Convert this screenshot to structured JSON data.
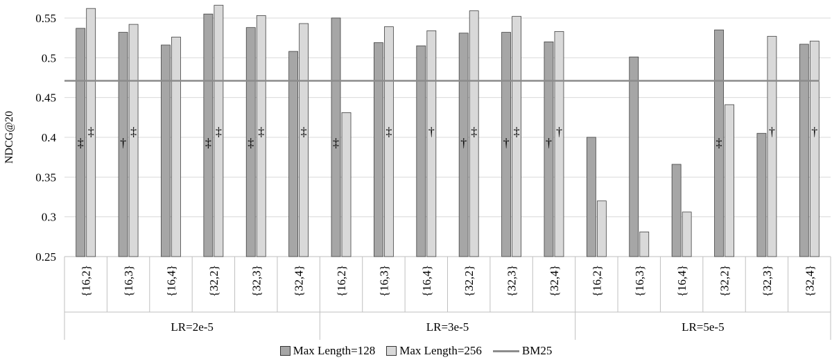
{
  "chart_data": {
    "type": "bar",
    "ylabel": "NDCG@20",
    "ylim": [
      0.25,
      0.57
    ],
    "yticks": [
      "0.25",
      "0.3",
      "0.35",
      "0.4",
      "0.45",
      "0.5",
      "0.55"
    ],
    "grid": true,
    "legend_position": "bottom",
    "groups": [
      {
        "label": "LR=2e-5",
        "categories": [
          "{16,2}",
          "{16,3}",
          "{16,4}",
          "{32,2}",
          "{32,3}",
          "{32,4}"
        ]
      },
      {
        "label": "LR=3e-5",
        "categories": [
          "{16,2}",
          "{16,3}",
          "{16,4}",
          "{32,2}",
          "{32,3}",
          "{32,4}"
        ]
      },
      {
        "label": "LR=5e-5",
        "categories": [
          "{16,2}",
          "{16,3}",
          "{16,4}",
          "{32,2}",
          "{32,3}",
          "{32,4}"
        ]
      }
    ],
    "series": [
      {
        "name": "Max Length=128",
        "color": "#a6a6a6",
        "values": [
          0.537,
          0.532,
          0.516,
          0.555,
          0.538,
          0.508,
          0.55,
          0.519,
          0.515,
          0.531,
          0.532,
          0.52,
          0.4,
          0.501,
          0.366,
          0.535,
          0.405,
          0.517
        ],
        "markers": [
          "‡",
          "†",
          "",
          "‡",
          "‡",
          "",
          "‡",
          "",
          "",
          "†",
          "†",
          "†",
          "",
          "",
          "",
          "‡",
          "",
          ""
        ]
      },
      {
        "name": "Max Length=256",
        "color": "#d9d9d9",
        "values": [
          0.562,
          0.542,
          0.526,
          0.566,
          0.553,
          0.543,
          0.431,
          0.539,
          0.534,
          0.559,
          0.552,
          0.533,
          0.32,
          0.281,
          0.306,
          0.441,
          0.527,
          0.521
        ],
        "markers": [
          "‡",
          "‡",
          "",
          "‡",
          "‡",
          "‡",
          "",
          "‡",
          "†",
          "‡",
          "‡",
          "†",
          "",
          "",
          "",
          "",
          "†",
          "†"
        ]
      }
    ],
    "baseline": {
      "name": "BM25",
      "value": 0.471,
      "color": "#8c8c8c"
    }
  }
}
